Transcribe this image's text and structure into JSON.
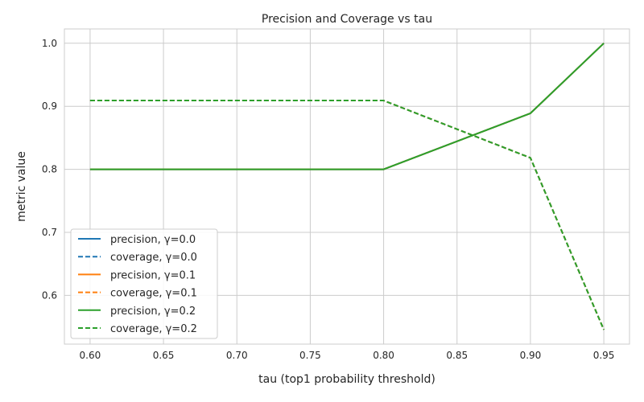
{
  "chart_data": {
    "type": "line",
    "title": "Precision and Coverage vs tau",
    "xlabel": "tau (top1 probability threshold)",
    "ylabel": "metric value",
    "x": [
      0.6,
      0.8,
      0.9,
      0.95
    ],
    "xlim": [
      0.5825,
      0.9675
    ],
    "ylim": [
      0.5227,
      1.0227
    ],
    "xticks": [
      0.6,
      0.65,
      0.7,
      0.75,
      0.8,
      0.85,
      0.9,
      0.95
    ],
    "xtick_labels": [
      "0.60",
      "0.65",
      "0.70",
      "0.75",
      "0.80",
      "0.85",
      "0.90",
      "0.95"
    ],
    "yticks": [
      0.6,
      0.7,
      0.8,
      0.9,
      1.0
    ],
    "ytick_labels": [
      "0.6",
      "0.7",
      "0.8",
      "0.9",
      "1.0"
    ],
    "grid": true,
    "legend_position": "lower-left",
    "series": [
      {
        "name": "precision, γ=0.0",
        "color": "#1f77b4",
        "dash": "solid",
        "values": [
          0.8,
          0.8,
          0.8889,
          1.0
        ]
      },
      {
        "name": "coverage, γ=0.0",
        "color": "#1f77b4",
        "dash": "dashed",
        "values": [
          0.9091,
          0.9091,
          0.8182,
          0.5455
        ]
      },
      {
        "name": "precision, γ=0.1",
        "color": "#ff7f0e",
        "dash": "solid",
        "values": [
          0.8,
          0.8,
          0.8889,
          1.0
        ]
      },
      {
        "name": "coverage, γ=0.1",
        "color": "#ff7f0e",
        "dash": "dashed",
        "values": [
          0.9091,
          0.9091,
          0.8182,
          0.5455
        ]
      },
      {
        "name": "precision, γ=0.2",
        "color": "#2ca02c",
        "dash": "solid",
        "values": [
          0.8,
          0.8,
          0.8889,
          1.0
        ]
      },
      {
        "name": "coverage, γ=0.2",
        "color": "#2ca02c",
        "dash": "dashed",
        "values": [
          0.9091,
          0.9091,
          0.8182,
          0.5455
        ]
      }
    ]
  }
}
